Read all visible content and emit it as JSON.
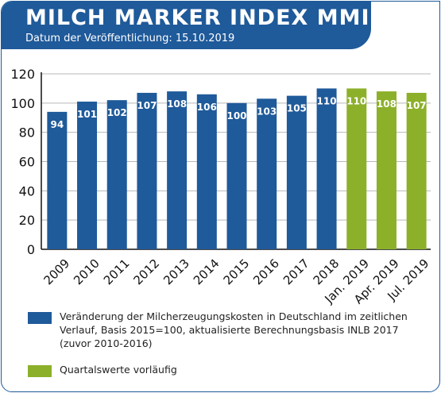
{
  "header": {
    "title": "MILCH MARKER INDEX MMI",
    "subtitle": "Datum der Veröffentlichung: 15.10.2019"
  },
  "colors": {
    "brand": "#1f5a9a",
    "bar_blue": "#1f5a9a",
    "bar_green": "#8cb02a"
  },
  "chart_data": {
    "type": "bar",
    "title": "",
    "xlabel": "",
    "ylabel": "",
    "ylim": [
      0,
      120
    ],
    "yticks": [
      0,
      20,
      40,
      60,
      80,
      100,
      120
    ],
    "grid": true,
    "categories": [
      "2009",
      "2010",
      "2011",
      "2012",
      "2013",
      "2014",
      "2015",
      "2016",
      "2017",
      "2018",
      "Jan. 2019",
      "Apr. 2019",
      "Jul. 2019"
    ],
    "series": [
      {
        "name": "Veränderung der Milcherzeugungskosten in Deutschland im zeitlichen Verlauf, Basis 2015=100, aktualisierte Berechnungsbasis INLB 2017 (zuvor 2010-2016)",
        "color": "#1f5a9a",
        "values": [
          94,
          101,
          102,
          107,
          108,
          106,
          100,
          103,
          105,
          110,
          null,
          null,
          null
        ]
      },
      {
        "name": "Quartalswerte vorläufig",
        "color": "#8cb02a",
        "values": [
          null,
          null,
          null,
          null,
          null,
          null,
          null,
          null,
          null,
          null,
          110,
          108,
          107
        ]
      }
    ],
    "legend_position": "bottom"
  },
  "legend": [
    {
      "color": "#1f5a9a",
      "text": "Veränderung der Milcherzeugungskosten in Deutschland im zeitlichen Verlauf, Basis 2015=100, aktualisierte Berechnungsbasis INLB 2017 (zuvor 2010-2016)"
    },
    {
      "color": "#8cb02a",
      "text": "Quartalswerte vorläufig"
    }
  ]
}
